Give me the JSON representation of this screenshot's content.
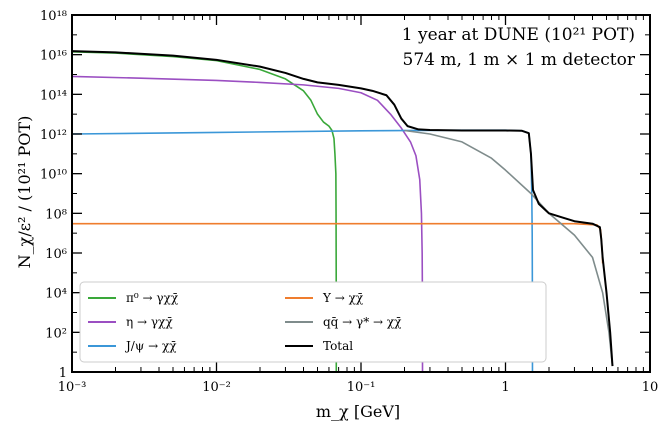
{
  "chart_data": {
    "type": "line",
    "annotations": [
      "1 year at DUNE (10²¹ POT)",
      "574 m,  1 m × 1 m detector"
    ],
    "xlabel": "m_χ [GeV]",
    "ylabel": "N_χ/ε² / (10²¹ POT)",
    "x_scale": "log",
    "y_scale": "log",
    "xlim": [
      0.001,
      10
    ],
    "ylim": [
      1,
      1e+18
    ],
    "grid": false,
    "legend_position": "bottom-left",
    "x_ticks": [
      {
        "value": 0.001,
        "label": "10⁻³"
      },
      {
        "value": 0.01,
        "label": "10⁻²"
      },
      {
        "value": 0.1,
        "label": "10⁻¹"
      },
      {
        "value": 1,
        "label": "1"
      },
      {
        "value": 10,
        "label": "10"
      }
    ],
    "y_ticks": [
      {
        "value": 1,
        "label": "1"
      },
      {
        "value": 100.0,
        "label": "10²"
      },
      {
        "value": 10000.0,
        "label": "10⁴"
      },
      {
        "value": 1000000.0,
        "label": "10⁶"
      },
      {
        "value": 100000000.0,
        "label": "10⁸"
      },
      {
        "value": 10000000000.0,
        "label": "10¹⁰"
      },
      {
        "value": 1000000000000.0,
        "label": "10¹²"
      },
      {
        "value": 100000000000000.0,
        "label": "10¹⁴"
      },
      {
        "value": 1e+16,
        "label": "10¹⁶"
      },
      {
        "value": 1e+18,
        "label": "10¹⁸"
      }
    ],
    "series": [
      {
        "name": "π⁰ → γχχ̄",
        "color": "#3aa83a",
        "points": [
          [
            0.001,
            1.4e+16
          ],
          [
            0.002,
            1.2e+16
          ],
          [
            0.005,
            8000000000000000.0
          ],
          [
            0.01,
            5000000000000000.0
          ],
          [
            0.02,
            1800000000000000.0
          ],
          [
            0.03,
            600000000000000.0
          ],
          [
            0.04,
            150000000000000.0
          ],
          [
            0.045,
            50000000000000.0
          ],
          [
            0.05,
            10000000000000.0
          ],
          [
            0.055,
            4000000000000.0
          ],
          [
            0.06,
            2500000000000.0
          ],
          [
            0.063,
            1500000000000.0
          ],
          [
            0.065,
            600000000000.0
          ],
          [
            0.066,
            100000000000.0
          ],
          [
            0.067,
            10000000000.0
          ],
          [
            0.0672,
            100000000.0
          ],
          [
            0.0673,
            1000000.0
          ],
          [
            0.0674,
            10000.0
          ],
          [
            0.06745,
            1
          ]
        ]
      },
      {
        "name": "η → γχχ̄",
        "color": "#9b4fc2",
        "points": [
          [
            0.001,
            800000000000000.0
          ],
          [
            0.003,
            650000000000000.0
          ],
          [
            0.01,
            500000000000000.0
          ],
          [
            0.02,
            400000000000000.0
          ],
          [
            0.04,
            300000000000000.0
          ],
          [
            0.07,
            200000000000000.0
          ],
          [
            0.1,
            120000000000000.0
          ],
          [
            0.13,
            50000000000000.0
          ],
          [
            0.16,
            10000000000000.0
          ],
          [
            0.19,
            2000000000000.0
          ],
          [
            0.22,
            400000000000.0
          ],
          [
            0.24,
            80000000000.0
          ],
          [
            0.255,
            5000000000.0
          ],
          [
            0.262,
            100000000.0
          ],
          [
            0.265,
            1000000.0
          ],
          [
            0.266,
            10000.0
          ],
          [
            0.2665,
            1
          ]
        ]
      },
      {
        "name": "J/ψ → χχ̄",
        "color": "#3b97d8",
        "points": [
          [
            0.001,
            1000000000000.0
          ],
          [
            0.01,
            1200000000000.0
          ],
          [
            0.1,
            1450000000000.0
          ],
          [
            0.5,
            1550000000000.0
          ],
          [
            1,
            1550000000000.0
          ],
          [
            1.3,
            1450000000000.0
          ],
          [
            1.45,
            1100000000000.0
          ],
          [
            1.5,
            100000000000.0
          ],
          [
            1.52,
            1000000000.0
          ],
          [
            1.53,
            10000000.0
          ],
          [
            1.535,
            10000.0
          ],
          [
            1.537,
            1
          ]
        ]
      },
      {
        "name": "Υ → χχ̄",
        "color": "#ef7d2e",
        "points": [
          [
            0.001,
            30000000.0
          ],
          [
            0.1,
            30000000.0
          ],
          [
            1,
            30000000.0
          ],
          [
            3,
            30000000.0
          ],
          [
            4.3,
            26000000.0
          ],
          [
            4.55,
            15000000.0
          ],
          [
            4.68,
            1000000.0
          ],
          [
            4.7,
            300000.0
          ]
        ]
      },
      {
        "name": "qq̄ → γ* → χχ̄",
        "color": "#7f8c8c",
        "points": [
          [
            0.2,
            1500000000000.0
          ],
          [
            0.3,
            1000000000000.0
          ],
          [
            0.5,
            400000000000.0
          ],
          [
            0.8,
            60000000000.0
          ],
          [
            1,
            15000000000.0
          ],
          [
            1.5,
            1000000000.0
          ],
          [
            2,
            100000000.0
          ],
          [
            3,
            8000000.0
          ],
          [
            4,
            600000.0
          ],
          [
            4.7,
            10000.0
          ],
          [
            5.2,
            100.0
          ],
          [
            5.5,
            2
          ]
        ]
      },
      {
        "name": "Total",
        "color": "#000000",
        "points": [
          [
            0.001,
            1.5e+16
          ],
          [
            0.002,
            1.3e+16
          ],
          [
            0.005,
            9000000000000000.0
          ],
          [
            0.01,
            5500000000000000.0
          ],
          [
            0.02,
            2500000000000000.0
          ],
          [
            0.03,
            1200000000000000.0
          ],
          [
            0.04,
            600000000000000.0
          ],
          [
            0.05,
            400000000000000.0
          ],
          [
            0.07,
            300000000000000.0
          ],
          [
            0.1,
            200000000000000.0
          ],
          [
            0.12,
            150000000000000.0
          ],
          [
            0.15,
            90000000000000.0
          ],
          [
            0.17,
            30000000000000.0
          ],
          [
            0.19,
            6000000000000.0
          ],
          [
            0.21,
            2500000000000.0
          ],
          [
            0.25,
            1700000000000.0
          ],
          [
            0.3,
            1600000000000.0
          ],
          [
            0.5,
            1500000000000.0
          ],
          [
            1,
            1500000000000.0
          ],
          [
            1.3,
            1450000000000.0
          ],
          [
            1.45,
            1100000000000.0
          ],
          [
            1.5,
            100000000000.0
          ],
          [
            1.55,
            1500000000.0
          ],
          [
            1.7,
            300000000.0
          ],
          [
            2,
            100000000.0
          ],
          [
            2.5,
            60000000.0
          ],
          [
            3,
            40000000.0
          ],
          [
            4,
            30000000.0
          ],
          [
            4.5,
            20000000.0
          ],
          [
            4.6,
            5000000.0
          ],
          [
            4.7,
            600000.0
          ],
          [
            5,
            10000.0
          ],
          [
            5.3,
            100.0
          ],
          [
            5.5,
            2
          ]
        ]
      }
    ]
  }
}
